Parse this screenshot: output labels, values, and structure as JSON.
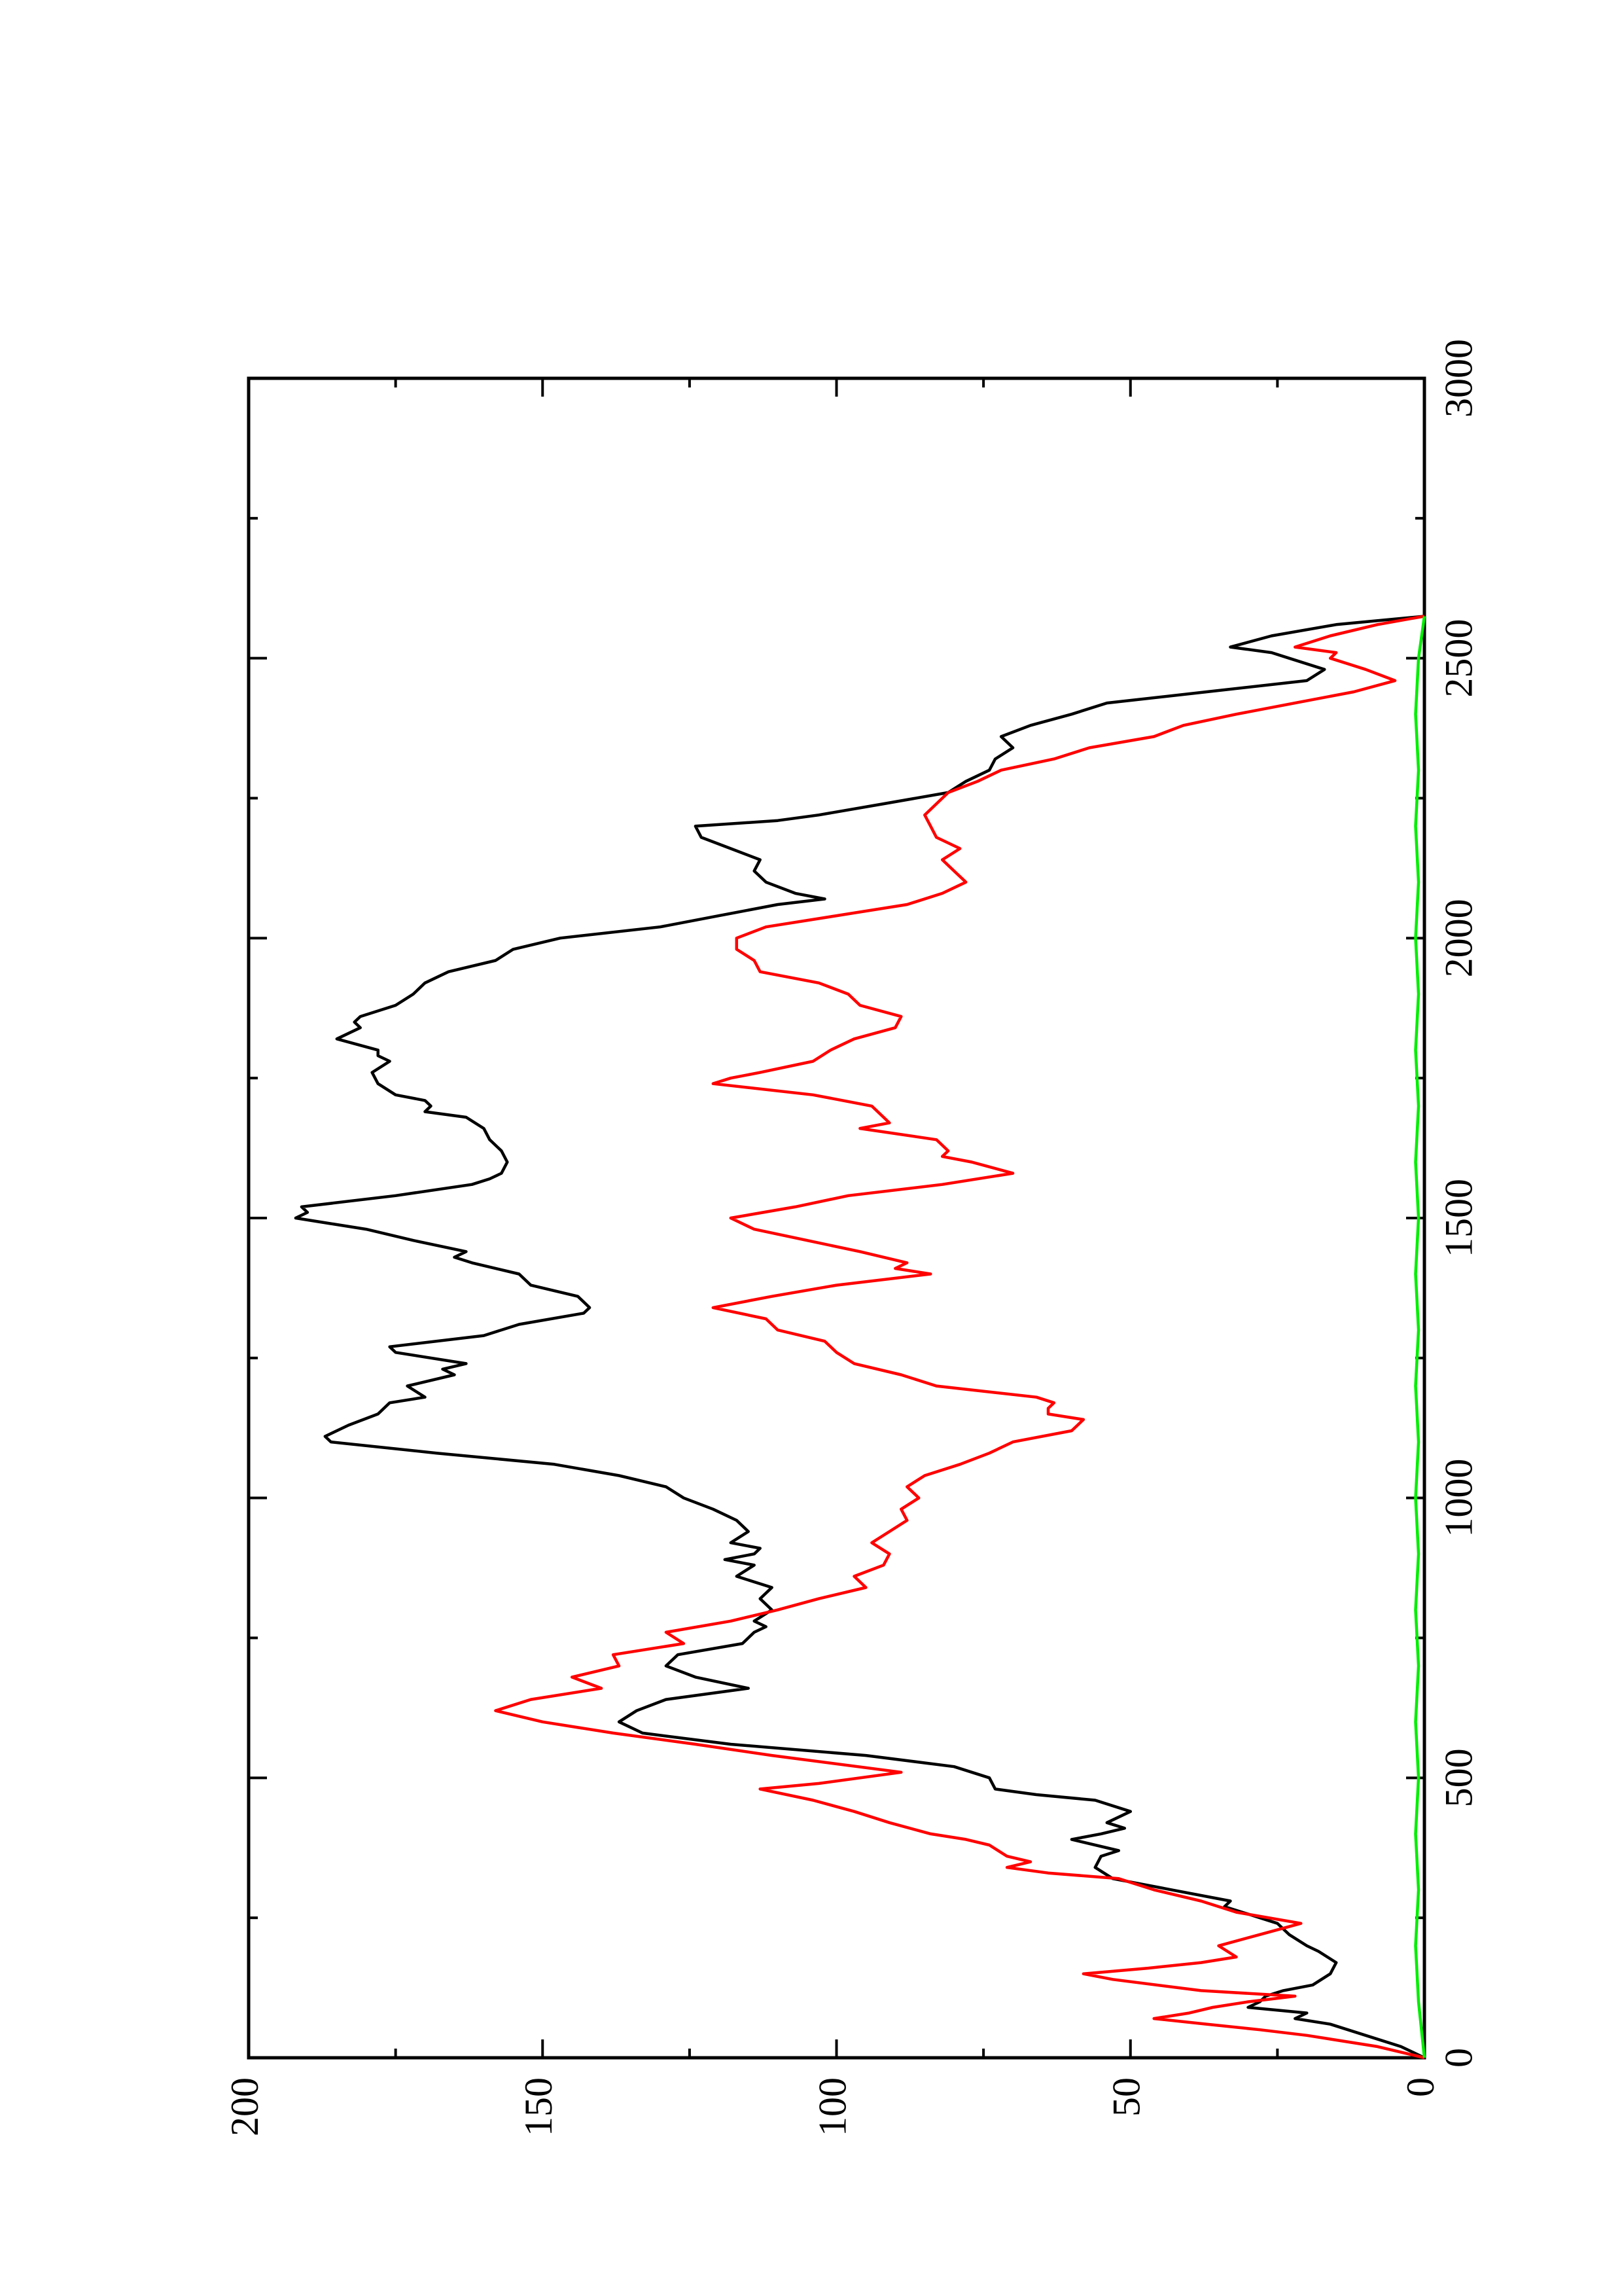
{
  "chart_data": {
    "type": "line",
    "title": "",
    "xlabel": "",
    "ylabel": "",
    "orientation": "rotated-90-ccw",
    "xlim": [
      0,
      3000
    ],
    "ylim": [
      0,
      200
    ],
    "xticks": [
      0,
      500,
      1000,
      1500,
      2000,
      2500,
      3000
    ],
    "yticks": [
      0,
      50,
      100,
      150,
      200
    ],
    "xtick_labels": [
      "0",
      "500",
      "1000",
      "1500",
      "2000",
      "2500",
      "3000"
    ],
    "ytick_labels": [
      "0",
      "50",
      "100",
      "150",
      "200"
    ],
    "x_minor_step": 250,
    "y_minor_step": 25,
    "grid": false,
    "legend": "none",
    "series": [
      {
        "color": "#000000",
        "points": [
          [
            0,
            0
          ],
          [
            20,
            4
          ],
          [
            40,
            10
          ],
          [
            60,
            16
          ],
          [
            70,
            22
          ],
          [
            80,
            20
          ],
          [
            90,
            30
          ],
          [
            100,
            28
          ],
          [
            110,
            27
          ],
          [
            120,
            24
          ],
          [
            130,
            19
          ],
          [
            150,
            16
          ],
          [
            170,
            15
          ],
          [
            190,
            18
          ],
          [
            200,
            20
          ],
          [
            220,
            23
          ],
          [
            240,
            25
          ],
          [
            260,
            31
          ],
          [
            270,
            34
          ],
          [
            280,
            33
          ],
          [
            300,
            43
          ],
          [
            320,
            53
          ],
          [
            340,
            56
          ],
          [
            360,
            55
          ],
          [
            370,
            52
          ],
          [
            390,
            60
          ],
          [
            400,
            55
          ],
          [
            410,
            51
          ],
          [
            420,
            54
          ],
          [
            440,
            50
          ],
          [
            460,
            56
          ],
          [
            470,
            66
          ],
          [
            480,
            73
          ],
          [
            500,
            74
          ],
          [
            520,
            80
          ],
          [
            540,
            95
          ],
          [
            560,
            118
          ],
          [
            580,
            133
          ],
          [
            600,
            137
          ],
          [
            620,
            134
          ],
          [
            640,
            129
          ],
          [
            660,
            115
          ],
          [
            680,
            124
          ],
          [
            700,
            129
          ],
          [
            720,
            127
          ],
          [
            740,
            116
          ],
          [
            760,
            114
          ],
          [
            770,
            112
          ],
          [
            780,
            114
          ],
          [
            800,
            111
          ],
          [
            820,
            113
          ],
          [
            840,
            111
          ],
          [
            860,
            117
          ],
          [
            880,
            114
          ],
          [
            890,
            119
          ],
          [
            900,
            114
          ],
          [
            910,
            113
          ],
          [
            920,
            118
          ],
          [
            940,
            115
          ],
          [
            960,
            117
          ],
          [
            980,
            121
          ],
          [
            1000,
            126
          ],
          [
            1020,
            129
          ],
          [
            1040,
            137
          ],
          [
            1060,
            148
          ],
          [
            1080,
            168
          ],
          [
            1100,
            186
          ],
          [
            1110,
            187
          ],
          [
            1130,
            183
          ],
          [
            1150,
            178
          ],
          [
            1170,
            176
          ],
          [
            1180,
            170
          ],
          [
            1200,
            173
          ],
          [
            1220,
            165
          ],
          [
            1230,
            167
          ],
          [
            1240,
            163
          ],
          [
            1260,
            175
          ],
          [
            1270,
            176
          ],
          [
            1290,
            160
          ],
          [
            1310,
            154
          ],
          [
            1330,
            143
          ],
          [
            1340,
            142
          ],
          [
            1360,
            144
          ],
          [
            1380,
            152
          ],
          [
            1400,
            154
          ],
          [
            1420,
            162
          ],
          [
            1430,
            165
          ],
          [
            1440,
            163
          ],
          [
            1460,
            172
          ],
          [
            1480,
            180
          ],
          [
            1490,
            186
          ],
          [
            1500,
            192
          ],
          [
            1510,
            190
          ],
          [
            1520,
            191
          ],
          [
            1540,
            175
          ],
          [
            1560,
            162
          ],
          [
            1570,
            159
          ],
          [
            1580,
            157
          ],
          [
            1600,
            156
          ],
          [
            1620,
            157
          ],
          [
            1640,
            159
          ],
          [
            1660,
            160
          ],
          [
            1680,
            163
          ],
          [
            1690,
            170
          ],
          [
            1700,
            169
          ],
          [
            1710,
            170
          ],
          [
            1720,
            175
          ],
          [
            1740,
            178
          ],
          [
            1760,
            179
          ],
          [
            1780,
            176
          ],
          [
            1790,
            178
          ],
          [
            1800,
            178
          ],
          [
            1820,
            185
          ],
          [
            1840,
            181
          ],
          [
            1850,
            182
          ],
          [
            1860,
            181
          ],
          [
            1880,
            175
          ],
          [
            1900,
            172
          ],
          [
            1920,
            170
          ],
          [
            1940,
            166
          ],
          [
            1960,
            158
          ],
          [
            1980,
            155
          ],
          [
            2000,
            147
          ],
          [
            2020,
            130
          ],
          [
            2040,
            120
          ],
          [
            2060,
            110
          ],
          [
            2070,
            102
          ],
          [
            2080,
            107
          ],
          [
            2100,
            112
          ],
          [
            2120,
            114
          ],
          [
            2140,
            113
          ],
          [
            2160,
            118
          ],
          [
            2180,
            123
          ],
          [
            2200,
            124
          ],
          [
            2210,
            110
          ],
          [
            2220,
            103
          ],
          [
            2240,
            92
          ],
          [
            2260,
            81
          ],
          [
            2280,
            78
          ],
          [
            2300,
            74
          ],
          [
            2320,
            73
          ],
          [
            2340,
            70
          ],
          [
            2360,
            72
          ],
          [
            2380,
            67
          ],
          [
            2400,
            60
          ],
          [
            2420,
            54
          ],
          [
            2440,
            37
          ],
          [
            2460,
            20
          ],
          [
            2480,
            17
          ],
          [
            2500,
            23
          ],
          [
            2510,
            26
          ],
          [
            2520,
            33
          ],
          [
            2540,
            26
          ],
          [
            2560,
            15
          ],
          [
            2575,
            0
          ]
        ]
      },
      {
        "color": "#ff0000",
        "points": [
          [
            0,
            0
          ],
          [
            20,
            8
          ],
          [
            40,
            20
          ],
          [
            50,
            28
          ],
          [
            60,
            37
          ],
          [
            70,
            46
          ],
          [
            80,
            40
          ],
          [
            90,
            36
          ],
          [
            100,
            30
          ],
          [
            110,
            22
          ],
          [
            120,
            38
          ],
          [
            140,
            53
          ],
          [
            150,
            58
          ],
          [
            160,
            47
          ],
          [
            170,
            38
          ],
          [
            180,
            32
          ],
          [
            200,
            35
          ],
          [
            220,
            28
          ],
          [
            240,
            21
          ],
          [
            260,
            32
          ],
          [
            280,
            38
          ],
          [
            300,
            46
          ],
          [
            320,
            52
          ],
          [
            330,
            64
          ],
          [
            340,
            71
          ],
          [
            350,
            67
          ],
          [
            360,
            71
          ],
          [
            380,
            74
          ],
          [
            390,
            78
          ],
          [
            400,
            84
          ],
          [
            420,
            91
          ],
          [
            440,
            97
          ],
          [
            460,
            104
          ],
          [
            480,
            113
          ],
          [
            490,
            103
          ],
          [
            510,
            89
          ],
          [
            540,
            111
          ],
          [
            560,
            124
          ],
          [
            580,
            138
          ],
          [
            600,
            150
          ],
          [
            620,
            158
          ],
          [
            640,
            152
          ],
          [
            660,
            140
          ],
          [
            680,
            145
          ],
          [
            700,
            137
          ],
          [
            720,
            138
          ],
          [
            740,
            126
          ],
          [
            760,
            129
          ],
          [
            780,
            118
          ],
          [
            800,
            110
          ],
          [
            820,
            103
          ],
          [
            840,
            95
          ],
          [
            860,
            97
          ],
          [
            880,
            92
          ],
          [
            900,
            91
          ],
          [
            920,
            94
          ],
          [
            940,
            91
          ],
          [
            960,
            88
          ],
          [
            980,
            89
          ],
          [
            1000,
            86
          ],
          [
            1020,
            88
          ],
          [
            1040,
            85
          ],
          [
            1060,
            79
          ],
          [
            1080,
            74
          ],
          [
            1100,
            70
          ],
          [
            1120,
            60
          ],
          [
            1140,
            58
          ],
          [
            1150,
            64
          ],
          [
            1160,
            64
          ],
          [
            1170,
            63
          ],
          [
            1180,
            66
          ],
          [
            1200,
            83
          ],
          [
            1220,
            89
          ],
          [
            1240,
            97
          ],
          [
            1260,
            100
          ],
          [
            1280,
            102
          ],
          [
            1300,
            110
          ],
          [
            1320,
            112
          ],
          [
            1340,
            121
          ],
          [
            1360,
            111
          ],
          [
            1380,
            100
          ],
          [
            1400,
            84
          ],
          [
            1410,
            90
          ],
          [
            1420,
            88
          ],
          [
            1440,
            96
          ],
          [
            1460,
            105
          ],
          [
            1480,
            114
          ],
          [
            1500,
            118
          ],
          [
            1520,
            107
          ],
          [
            1540,
            98
          ],
          [
            1560,
            82
          ],
          [
            1580,
            70
          ],
          [
            1600,
            77
          ],
          [
            1610,
            82
          ],
          [
            1620,
            81
          ],
          [
            1640,
            83
          ],
          [
            1660,
            96
          ],
          [
            1670,
            91
          ],
          [
            1680,
            92
          ],
          [
            1700,
            94
          ],
          [
            1720,
            104
          ],
          [
            1740,
            121
          ],
          [
            1750,
            118
          ],
          [
            1760,
            113
          ],
          [
            1780,
            104
          ],
          [
            1800,
            101
          ],
          [
            1820,
            97
          ],
          [
            1840,
            90
          ],
          [
            1860,
            89
          ],
          [
            1880,
            96
          ],
          [
            1900,
            98
          ],
          [
            1920,
            103
          ],
          [
            1940,
            113
          ],
          [
            1960,
            114
          ],
          [
            1980,
            117
          ],
          [
            2000,
            117
          ],
          [
            2020,
            112
          ],
          [
            2040,
            100
          ],
          [
            2060,
            88
          ],
          [
            2080,
            82
          ],
          [
            2100,
            78
          ],
          [
            2120,
            80
          ],
          [
            2140,
            82
          ],
          [
            2160,
            79
          ],
          [
            2180,
            83
          ],
          [
            2200,
            84
          ],
          [
            2220,
            85
          ],
          [
            2240,
            83
          ],
          [
            2260,
            81
          ],
          [
            2280,
            76
          ],
          [
            2300,
            72
          ],
          [
            2320,
            63
          ],
          [
            2340,
            57
          ],
          [
            2360,
            46
          ],
          [
            2380,
            41
          ],
          [
            2400,
            32
          ],
          [
            2420,
            22
          ],
          [
            2440,
            12
          ],
          [
            2460,
            5
          ],
          [
            2480,
            10
          ],
          [
            2500,
            16
          ],
          [
            2510,
            15
          ],
          [
            2520,
            22
          ],
          [
            2540,
            16
          ],
          [
            2560,
            8
          ],
          [
            2575,
            0
          ]
        ]
      },
      {
        "color": "#00ee00",
        "points": [
          [
            0,
            0
          ],
          [
            100,
            1
          ],
          [
            200,
            1.5
          ],
          [
            300,
            1
          ],
          [
            400,
            1.5
          ],
          [
            500,
            1
          ],
          [
            600,
            1.5
          ],
          [
            700,
            1
          ],
          [
            800,
            1.5
          ],
          [
            900,
            1
          ],
          [
            1000,
            1.5
          ],
          [
            1100,
            1
          ],
          [
            1200,
            1.5
          ],
          [
            1300,
            1
          ],
          [
            1400,
            1.5
          ],
          [
            1500,
            1
          ],
          [
            1600,
            1.5
          ],
          [
            1700,
            1
          ],
          [
            1800,
            1.5
          ],
          [
            1900,
            1
          ],
          [
            2000,
            1.5
          ],
          [
            2100,
            1
          ],
          [
            2200,
            1.5
          ],
          [
            2300,
            1
          ],
          [
            2400,
            1.5
          ],
          [
            2500,
            1
          ],
          [
            2575,
            0
          ]
        ]
      }
    ]
  }
}
